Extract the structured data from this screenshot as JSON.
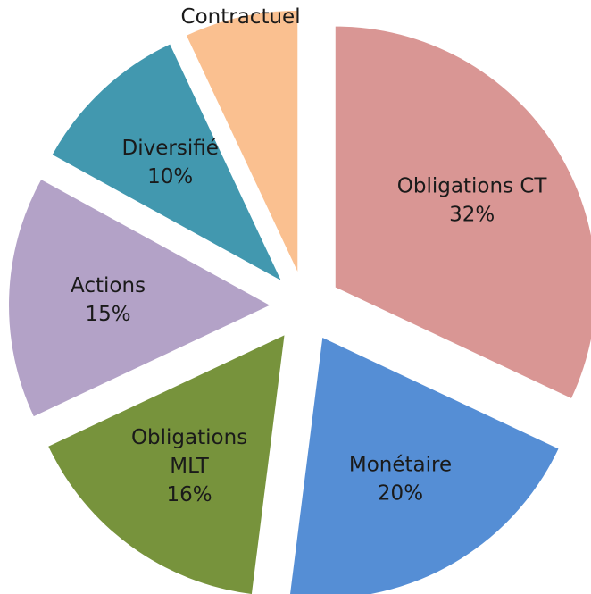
{
  "chart_data": {
    "type": "pie",
    "categories": [
      "Obligations CT",
      "Monétaire",
      "Obligations MLT",
      "Actions",
      "Diversifié",
      "Contractuel"
    ],
    "values": [
      32,
      20,
      16,
      15,
      10,
      7
    ],
    "value_labels": [
      "32%",
      "20%",
      "16%",
      "15%",
      "10%",
      null
    ],
    "colors": [
      "#d99694",
      "#558ed5",
      "#77933c",
      "#b3a2c7",
      "#4298af",
      "#fac090"
    ]
  }
}
